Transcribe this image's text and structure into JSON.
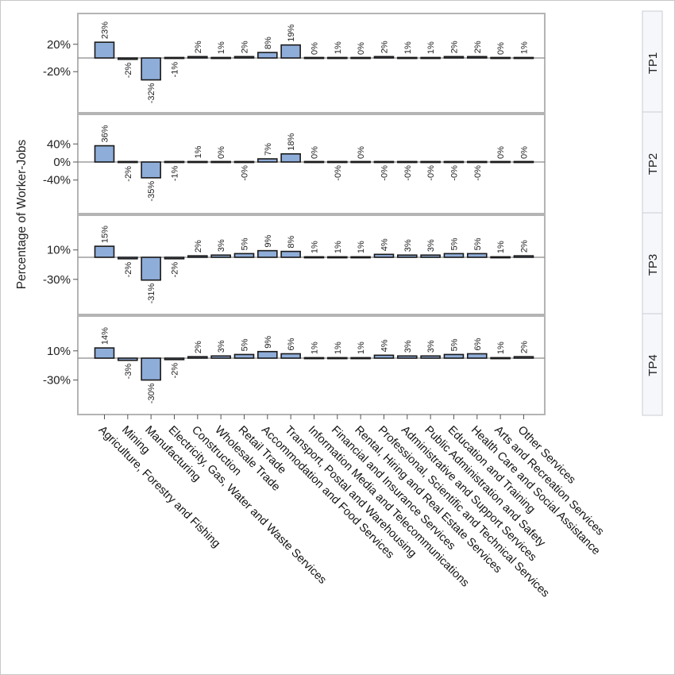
{
  "chart_data": {
    "type": "bar",
    "ylabel": "Percentage of Worker-Jobs",
    "categories": [
      "Agriculture, Forestry and Fishing",
      "Mining",
      "Manufacturing",
      "Electricity, Gas, Water and Waste Services",
      "Construction",
      "Wholesale Trade",
      "Retail Trade",
      "Accommodation and Food Services",
      "Transport, Postal and Warehousing",
      "Information Media and Telecommunications",
      "Financial and Insurance Services",
      "Rental, Hiring and Real Estate Services",
      "Professional, Scientific and Technical Services",
      "Administrative and Support Services",
      "Public Administration and Safety",
      "Education and Training",
      "Health Care and Social Assistance",
      "Arts and Recreation Services",
      "Other Services"
    ],
    "panels": [
      {
        "name": "TP1",
        "values": [
          23,
          -2,
          -32,
          -1,
          2,
          1,
          2,
          8,
          19,
          0,
          1,
          0,
          2,
          1,
          1,
          2,
          2,
          0,
          1
        ],
        "labels": [
          "23%",
          "-2%",
          "-32%",
          "-1%",
          "2%",
          "1%",
          "2%",
          "8%",
          "19%",
          "0%",
          "1%",
          "0%",
          "2%",
          "1%",
          "1%",
          "2%",
          "2%",
          "0%",
          "1%"
        ],
        "yticks": [
          20,
          -20
        ],
        "ytick_labels": [
          "20%",
          "-20%"
        ],
        "ylim": [
          -80,
          65
        ]
      },
      {
        "name": "TP2",
        "values": [
          36,
          -2,
          -35,
          -1,
          1,
          0,
          -0.1,
          7,
          18,
          0,
          -0.1,
          0,
          -0.1,
          -0.1,
          -0.1,
          -0.1,
          -0.1,
          0,
          0
        ],
        "labels": [
          "36%",
          "-2%",
          "-35%",
          "-1%",
          "1%",
          "0%",
          "-0%",
          "7%",
          "18%",
          "0%",
          "-0%",
          "0%",
          "-0%",
          "-0%",
          "-0%",
          "-0%",
          "-0%",
          "0%",
          "0%"
        ],
        "yticks": [
          40,
          0,
          -40
        ],
        "ytick_labels": [
          "40%",
          "0%",
          "-40%"
        ],
        "ylim": [
          -110,
          110
        ]
      },
      {
        "name": "TP3",
        "values": [
          15,
          -2,
          -31,
          -2,
          2,
          3,
          5,
          9,
          8,
          1,
          1,
          1,
          4,
          3,
          3,
          5,
          5,
          1,
          2
        ],
        "labels": [
          "15%",
          "-2%",
          "-31%",
          "-2%",
          "2%",
          "3%",
          "5%",
          "9%",
          "8%",
          "1%",
          "1%",
          "1%",
          "4%",
          "3%",
          "3%",
          "5%",
          "5%",
          "1%",
          "2%"
        ],
        "yticks": [
          10,
          -30
        ],
        "ytick_labels": [
          "10%",
          "-30%"
        ],
        "ylim": [
          -80,
          55
        ]
      },
      {
        "name": "TP4",
        "values": [
          14,
          -3,
          -30,
          -2,
          2,
          3,
          5,
          9,
          6,
          1,
          1,
          1,
          4,
          3,
          3,
          5,
          6,
          1,
          2
        ],
        "labels": [
          "14%",
          "-3%",
          "-30%",
          "-2%",
          "2%",
          "3%",
          "5%",
          "9%",
          "6%",
          "1%",
          "1%",
          "1%",
          "4%",
          "3%",
          "3%",
          "5%",
          "6%",
          "1%",
          "2%"
        ],
        "yticks": [
          10,
          -30
        ],
        "ytick_labels": [
          "10%",
          "-30%"
        ],
        "ylim": [
          -80,
          55
        ]
      }
    ],
    "colors": {
      "bar_fill": "#8fadd9",
      "bar_stroke": "#1a1a1a",
      "zero_line": "#8a8a8a"
    },
    "grid": false,
    "legend": "none"
  }
}
